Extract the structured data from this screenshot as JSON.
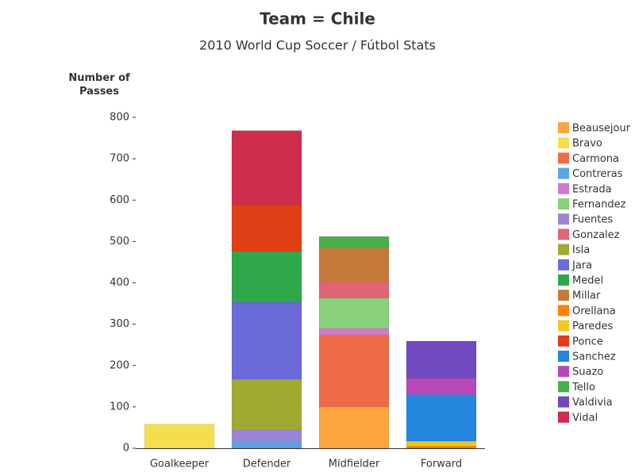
{
  "chart_data": {
    "type": "stacked-bar",
    "title": "Team = Chile",
    "subtitle": "2010 World Cup Soccer / Fútbol Stats",
    "y_label": "Number of Passes",
    "categories": [
      "Goalkeeper",
      "Defender",
      "Midfielder",
      "Forward"
    ],
    "ylim": [
      0,
      800
    ],
    "yticks": [
      0,
      100,
      200,
      300,
      400,
      500,
      600,
      700,
      800
    ],
    "series": [
      {
        "name": "Beausejour",
        "color": "#ffa53f",
        "values": [
          null,
          null,
          100,
          null
        ]
      },
      {
        "name": "Bravo",
        "color": "#f5dd50",
        "values": [
          58,
          null,
          null,
          null
        ]
      },
      {
        "name": "Carmona",
        "color": "#ee6b48",
        "values": [
          null,
          null,
          174,
          null
        ]
      },
      {
        "name": "Contreras",
        "color": "#5ca2e6",
        "values": [
          null,
          15,
          null,
          null
        ]
      },
      {
        "name": "Estrada",
        "color": "#d07acc",
        "values": [
          null,
          null,
          16,
          null
        ]
      },
      {
        "name": "Fernandez",
        "color": "#88d07a",
        "values": [
          null,
          null,
          73,
          null
        ]
      },
      {
        "name": "Fuentes",
        "color": "#9a86d6",
        "values": [
          null,
          29,
          null,
          null
        ]
      },
      {
        "name": "Gonzalez",
        "color": "#e06575",
        "values": [
          null,
          null,
          40,
          null
        ]
      },
      {
        "name": "Isla",
        "color": "#a0aa30",
        "values": [
          null,
          123,
          null,
          null
        ]
      },
      {
        "name": "Jara",
        "color": "#6a6ad8",
        "values": [
          null,
          186,
          null,
          null
        ]
      },
      {
        "name": "Medel",
        "color": "#2ea84a",
        "values": [
          null,
          123,
          null,
          null
        ]
      },
      {
        "name": "Millar",
        "color": "#c47a38",
        "values": [
          null,
          null,
          81,
          null
        ]
      },
      {
        "name": "Orellana",
        "color": "#ff8000",
        "values": [
          null,
          null,
          null,
          5
        ]
      },
      {
        "name": "Paredes",
        "color": "#f2c81e",
        "values": [
          null,
          null,
          null,
          12
        ]
      },
      {
        "name": "Ponce",
        "color": "#e03e14",
        "values": [
          null,
          113,
          null,
          null
        ]
      },
      {
        "name": "Sanchez",
        "color": "#2586de",
        "values": [
          null,
          null,
          null,
          113
        ]
      },
      {
        "name": "Suazo",
        "color": "#b848b8",
        "values": [
          null,
          null,
          null,
          39
        ]
      },
      {
        "name": "Tello",
        "color": "#48b048",
        "values": [
          null,
          null,
          28,
          null
        ]
      },
      {
        "name": "Valdivia",
        "color": "#7048c0",
        "values": [
          null,
          null,
          null,
          90
        ]
      },
      {
        "name": "Vidal",
        "color": "#d02c4c",
        "values": [
          null,
          179,
          null,
          null
        ]
      }
    ]
  }
}
